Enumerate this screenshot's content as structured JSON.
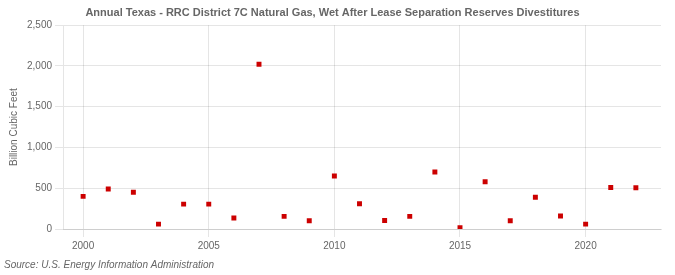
{
  "chart_data": {
    "type": "scatter",
    "title": "Annual Texas - RRC District 7C Natural Gas, Wet After Lease Separation Reserves Divestitures",
    "ylabel": "Billion Cubic Feet",
    "annotations": [
      "Source: U.S. Energy Information Administration"
    ],
    "x": [
      2000,
      2001,
      2002,
      2003,
      2004,
      2005,
      2006,
      2007,
      2008,
      2009,
      2010,
      2011,
      2012,
      2013,
      2014,
      2015,
      2016,
      2017,
      2018,
      2019,
      2020,
      2021,
      2022
    ],
    "values": [
      400,
      490,
      450,
      60,
      305,
      305,
      135,
      2020,
      155,
      100,
      650,
      310,
      105,
      155,
      700,
      15,
      580,
      100,
      390,
      160,
      60,
      510,
      505
    ],
    "color": "#cc0000",
    "marker": "square",
    "xlim": [
      1999.2,
      2023
    ],
    "xticks": [
      2000,
      2005,
      2010,
      2015,
      2020
    ],
    "ylim": [
      0,
      2500
    ],
    "yticks": [
      0,
      500,
      {
        "value": 1000,
        "label": "1,000"
      },
      {
        "value": 1500,
        "label": "1,500"
      },
      {
        "value": 2000,
        "label": "2,000"
      },
      {
        "value": 2500,
        "label": "2,500"
      }
    ],
    "grid": true
  }
}
